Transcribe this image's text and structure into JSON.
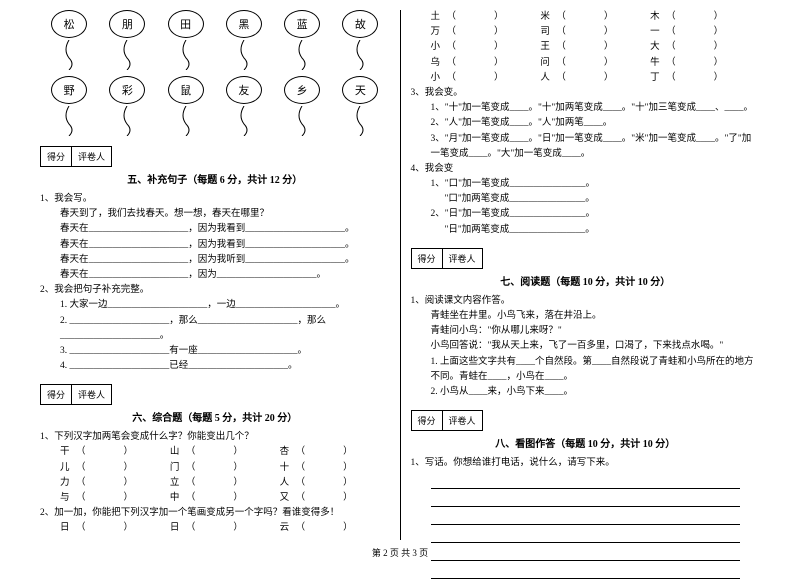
{
  "footer": "第 2 页 共 3 页",
  "balloons_row1": [
    "松",
    "朋",
    "田",
    "黑",
    "蓝",
    "故"
  ],
  "balloons_row2": [
    "野",
    "彩",
    "鼠",
    "友",
    "乡",
    "天"
  ],
  "scorebox": {
    "left": "得分",
    "right": "评卷人"
  },
  "section5": {
    "title": "五、补充句子（每题 6 分，共计 12 分）",
    "q1_head": "1、我会写。",
    "q1_intro": "春天到了，我们去找春天。想一想，春天在哪里？",
    "q1_l1a": "春天在",
    "q1_l1b": "，因为我看到",
    "q1_l1c": "。",
    "q1_l2a": "春天在",
    "q1_l2b": "，因为我看到",
    "q1_l2c": "。",
    "q1_l3a": "春天在",
    "q1_l3b": "，因为我听到",
    "q1_l3c": "。",
    "q1_l4a": "春天在",
    "q1_l4b": "，因为",
    "q1_l4c": "。",
    "q2_head": "2、我会把句子补充完整。",
    "q2_1": "1. 大家一边_____________________，一边_____________________。",
    "q2_2": "2. _____________________，那么_____________________，那么_____________________。",
    "q2_3": "3. _____________________有一座_____________________。",
    "q2_4": "4. _____________________已经_____________________。"
  },
  "section6": {
    "title": "六、综合题（每题 5 分，共计 20 分）",
    "q1_head": "1、下列汉字加两笔会变成什么字？你能变出几个？",
    "rows1": [
      [
        [
          "干",
          "（"
        ],
        [
          "山",
          "（"
        ],
        [
          "杏",
          "（"
        ]
      ],
      [
        [
          "儿",
          "（"
        ],
        [
          "门",
          "（"
        ],
        [
          "十",
          "（"
        ]
      ],
      [
        [
          "力",
          "（"
        ],
        [
          "立",
          "（"
        ],
        [
          "人",
          "（"
        ]
      ],
      [
        [
          "与",
          "（"
        ],
        [
          "中",
          "（"
        ],
        [
          "又",
          "（"
        ]
      ]
    ],
    "q2_head": "2、加一加，你能把下列汉字加一个笔画变成另一个字吗？看谁变得多！",
    "rows2": [
      [
        [
          "日",
          "（"
        ],
        [
          "日",
          "（"
        ],
        [
          "云",
          "（"
        ]
      ]
    ]
  },
  "right_top_rows": [
    [
      [
        "土",
        "（"
      ],
      [
        "米",
        "（"
      ],
      [
        "木",
        "（"
      ]
    ],
    [
      [
        "万",
        "（"
      ],
      [
        "司",
        "（"
      ],
      [
        "一",
        "（"
      ]
    ],
    [
      [
        "小",
        "（"
      ],
      [
        "王",
        "（"
      ],
      [
        "大",
        "（"
      ]
    ],
    [
      [
        "乌",
        "（"
      ],
      [
        "问",
        "（"
      ],
      [
        "牛",
        "（"
      ]
    ],
    [
      [
        "小",
        "（"
      ],
      [
        "人",
        "（"
      ],
      [
        "丁",
        "（"
      ]
    ]
  ],
  "right_q3_head": "3、我会变。",
  "right_q3_1": "1、\"十\"加一笔变成____。\"十\"加两笔变成____。\"十\"加三笔变成____、____。",
  "right_q3_2": "2、\"人\"加一笔变成____。\"人\"加两笔____。",
  "right_q3_3": "3、\"月\"加一笔变成____。\"日\"加一笔变成____。\"米\"加一笔变成____。\"了\"加一笔变成____。\"大\"加一笔变成____。",
  "right_q4_head": "4、我会变",
  "right_q4_1": "1、\"口\"加一笔变成________________。",
  "right_q4_1b": "\"口\"加两笔变成________________。",
  "right_q4_2": "2、\"日\"加一笔变成________________。",
  "right_q4_2b": "\"日\"加两笔变成________________。",
  "section7": {
    "title": "七、阅读题（每题 10 分，共计 10 分）",
    "q1_head": "1、阅读课文内容作答。",
    "l1": "青蛙坐在井里。小鸟飞来，落在井沿上。",
    "l2": "青蛙问小鸟：\"你从哪儿来呀？\"",
    "l3": "小鸟回答说：\"我从天上来，飞了一百多里，口渴了，下来找点水喝。\"",
    "l4": "1. 上面这些文字共有____个自然段。第____自然段说了青蛙和小鸟所在的地方不同。青蛙在____，小鸟在____。",
    "l5": "2. 小鸟从____来，小鸟下来____。"
  },
  "section8": {
    "title": "八、看图作答（每题 10 分，共计 10 分）",
    "q1": "1、写话。你想给谁打电话，说什么，请写下来。"
  }
}
